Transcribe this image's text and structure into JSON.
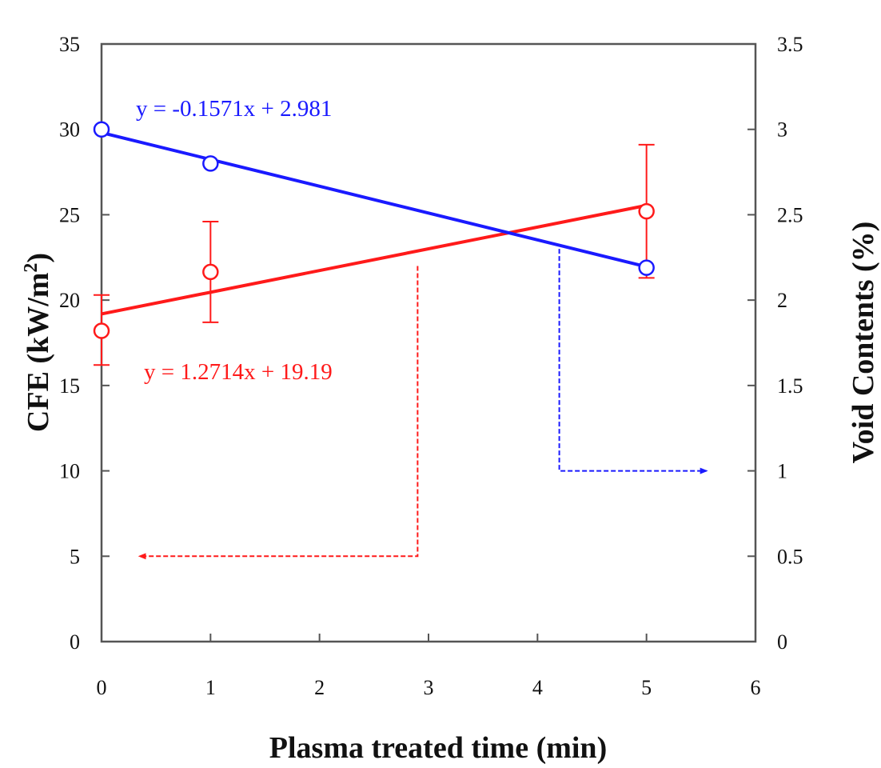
{
  "chart_data": {
    "type": "line",
    "title": "",
    "xlabel": "Plasma treated time (min)",
    "ylabel_left": "CFE (kW/m",
    "ylabel_left_sup": "2",
    "ylabel_left_tail": ")",
    "ylabel_right": "Void Contents (%)",
    "xlim": [
      0,
      6
    ],
    "ylim_left": [
      0,
      35
    ],
    "ylim_right": [
      0,
      3.5
    ],
    "x_ticks": [
      "0",
      "1",
      "2",
      "3",
      "4",
      "5",
      "6"
    ],
    "y_left_ticks": [
      "0",
      "5",
      "10",
      "15",
      "20",
      "25",
      "30",
      "35"
    ],
    "y_right_ticks": [
      "0",
      "0.5",
      "1",
      "1.5",
      "2",
      "2.5",
      "3",
      "3.5"
    ],
    "grid": false,
    "series": [
      {
        "name": "CFE",
        "axis": "left",
        "color": "#ff1a1a",
        "x": [
          0,
          1,
          5
        ],
        "values": [
          18.2,
          21.65,
          25.2
        ],
        "error_low": [
          16.2,
          18.7,
          21.3
        ],
        "error_high": [
          20.3,
          24.6,
          29.1
        ],
        "trendline": {
          "slope": 1.2714,
          "intercept": 19.19,
          "label": "y = 1.2714x + 19.19"
        }
      },
      {
        "name": "Void Contents",
        "axis": "right",
        "color": "#1a1aff",
        "x": [
          0,
          1,
          5
        ],
        "values": [
          3.0,
          2.8,
          2.19
        ],
        "trendline": {
          "slope": -0.1571,
          "intercept": 2.981,
          "label": "y = -0.1571x + 2.981"
        }
      }
    ],
    "annotations": [
      {
        "type": "dashed-arrow",
        "series": "CFE",
        "points_data": [
          [
            2.9,
            22.0
          ],
          [
            2.9,
            5.0
          ],
          [
            0.35,
            5.0
          ]
        ],
        "color": "#ff1a1a",
        "meaning": "points to left axis"
      },
      {
        "type": "dashed-arrow",
        "series": "Void Contents",
        "points_data": [
          [
            4.2,
            2.3
          ],
          [
            4.2,
            1.0
          ],
          [
            5.55,
            1.0
          ]
        ],
        "color": "#1a1aff",
        "meaning": "points to right axis"
      }
    ]
  }
}
